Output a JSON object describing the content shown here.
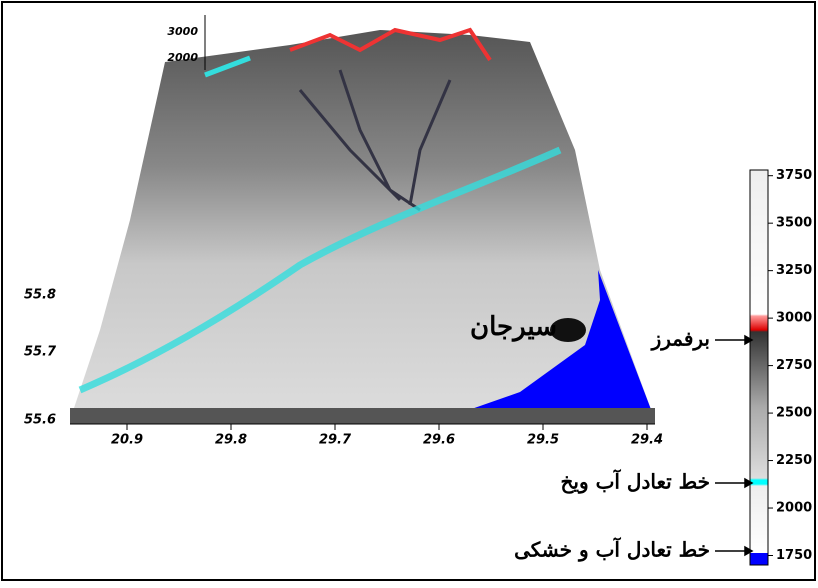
{
  "map": {
    "elevation_axis": [
      "3000",
      "2000"
    ],
    "latitude_axis": [
      "55.8",
      "55.7",
      "55.6"
    ],
    "longitude_axis": [
      "20.9",
      "29.8",
      "29.7",
      "29.6",
      "29.5",
      "29.4"
    ],
    "city": "سیرجان"
  },
  "colorbar": {
    "range": [
      1700,
      3780
    ],
    "ticks": [
      1750,
      2000,
      2250,
      2500,
      2750,
      3000,
      3250,
      3500,
      3750
    ]
  },
  "annotations": {
    "snowline": "برفمرز",
    "ice_water_equilibrium": "خط تعادل آب ویخ",
    "land_water_equilibrium": "خط تعادل آب و خشکی"
  }
}
